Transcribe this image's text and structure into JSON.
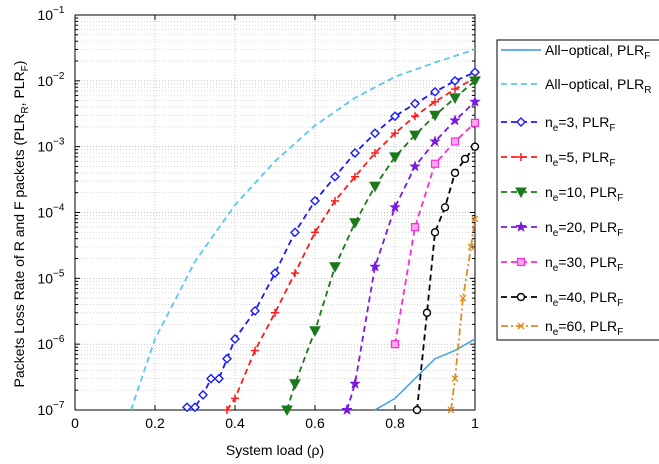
{
  "chart_data": {
    "type": "line",
    "title": "",
    "xlabel": "System load (ρ)",
    "ylabel": {
      "main": "Packets Loss Rate of R and F packets (PLR",
      "sub1": "R",
      "mid": ", PLR",
      "sub2": "F",
      "end": ")"
    },
    "xlim": [
      0,
      1
    ],
    "ylim": [
      1e-07,
      0.1
    ],
    "yscale": "log",
    "grid": true,
    "legend_position": "right-outside",
    "x_ticks": [
      "0",
      "0.2",
      "0.4",
      "0.6",
      "0.8",
      "1"
    ],
    "x_tick_values": [
      0,
      0.2,
      0.4,
      0.6,
      0.8,
      1
    ],
    "y_tick_exponents": [
      -7,
      -6,
      -5,
      -4,
      -3,
      -2,
      -1
    ],
    "y_tick_base": "10",
    "series": [
      {
        "name": "All−optical, PLR",
        "sub": "F",
        "color": "#4aa8df",
        "dash": "solid",
        "marker": "none",
        "x": [
          0.75,
          0.8,
          0.85,
          0.9,
          0.95,
          1.0
        ],
        "y": [
          1e-07,
          1.5e-07,
          3e-07,
          6e-07,
          8e-07,
          1.2e-06
        ]
      },
      {
        "name": "All−optical, PLR",
        "sub": "R",
        "color": "#5ac8e8",
        "dash": "dashed",
        "marker": "none",
        "x": [
          0.14,
          0.2,
          0.3,
          0.4,
          0.5,
          0.6,
          0.7,
          0.8,
          0.9,
          1.0
        ],
        "y": [
          1e-07,
          1.2e-06,
          1.8e-05,
          0.00013,
          0.0006,
          0.0021,
          0.0055,
          0.0115,
          0.019,
          0.03
        ]
      },
      {
        "name": "n",
        "sub_e": "e",
        "label_rest": "=3, PLR",
        "sub": "F",
        "color": "#1a1aff",
        "dash": "dashed",
        "marker": "diamond",
        "x": [
          0.28,
          0.3,
          0.32,
          0.34,
          0.36,
          0.38,
          0.4,
          0.45,
          0.5,
          0.55,
          0.6,
          0.65,
          0.7,
          0.75,
          0.8,
          0.85,
          0.9,
          0.95,
          1.0
        ],
        "y": [
          1.1e-07,
          1.1e-07,
          1.7e-07,
          3e-07,
          3e-07,
          6e-07,
          1.2e-06,
          3.2e-06,
          1.2e-05,
          5e-05,
          0.00015,
          0.00035,
          0.0008,
          0.0016,
          0.0029,
          0.0045,
          0.0068,
          0.01,
          0.0135
        ]
      },
      {
        "name": "n",
        "sub_e": "e",
        "label_rest": "=5, PLR",
        "sub": "F",
        "color": "#ff1a1a",
        "dash": "dashed",
        "marker": "plus",
        "x": [
          0.38,
          0.4,
          0.45,
          0.5,
          0.55,
          0.6,
          0.65,
          0.7,
          0.75,
          0.8,
          0.85,
          0.9,
          0.95,
          1.0
        ],
        "y": [
          1e-07,
          1.5e-07,
          8e-07,
          3e-06,
          1.2e-05,
          5e-05,
          0.00015,
          0.00035,
          0.0008,
          0.0016,
          0.0029,
          0.0048,
          0.0075,
          0.011
        ]
      },
      {
        "name": "n",
        "sub_e": "e",
        "label_rest": "=10, PLR",
        "sub": "F",
        "color": "#1a7a1a",
        "dash": "dashed",
        "marker": "triangle-down",
        "x": [
          0.53,
          0.55,
          0.6,
          0.65,
          0.7,
          0.75,
          0.8,
          0.85,
          0.9,
          0.95,
          1.0
        ],
        "y": [
          1e-07,
          2.5e-07,
          1.6e-06,
          1.5e-05,
          7e-05,
          0.00025,
          0.0007,
          0.0015,
          0.003,
          0.0055,
          0.01
        ]
      },
      {
        "name": "n",
        "sub_e": "e",
        "label_rest": "=20, PLR",
        "sub": "F",
        "color": "#7a1adf",
        "dash": "dashed",
        "marker": "star",
        "x": [
          0.68,
          0.7,
          0.75,
          0.8,
          0.85,
          0.9,
          0.95,
          1.0
        ],
        "y": [
          1e-07,
          2.5e-07,
          1.5e-05,
          0.00012,
          0.0005,
          0.0012,
          0.0025,
          0.0048
        ]
      },
      {
        "name": "n",
        "sub_e": "e",
        "label_rest": "=30, PLR",
        "sub": "F",
        "color": "#ff2ad8",
        "dash": "dashed",
        "marker": "square",
        "x": [
          0.8,
          0.85,
          0.9,
          0.95,
          1.0
        ],
        "y": [
          1e-06,
          6e-05,
          0.00055,
          0.0012,
          0.0023
        ]
      },
      {
        "name": "n",
        "sub_e": "e",
        "label_rest": "=40, PLR",
        "sub": "F",
        "color": "#000000",
        "dash": "dashed",
        "marker": "circle",
        "x": [
          0.855,
          0.88,
          0.9,
          0.925,
          0.95,
          0.975,
          1.0
        ],
        "y": [
          1e-07,
          3e-06,
          5e-05,
          0.00012,
          0.0004,
          0.00065,
          0.001
        ]
      },
      {
        "name": "n",
        "sub_e": "e",
        "label_rest": "=60, PLR",
        "sub": "F",
        "color": "#e08a1a",
        "dash": "dashdot",
        "marker": "x",
        "x": [
          0.94,
          0.95,
          0.97,
          0.99,
          1.0
        ],
        "y": [
          1e-07,
          3e-07,
          5e-06,
          3e-05,
          8e-05
        ]
      }
    ]
  }
}
